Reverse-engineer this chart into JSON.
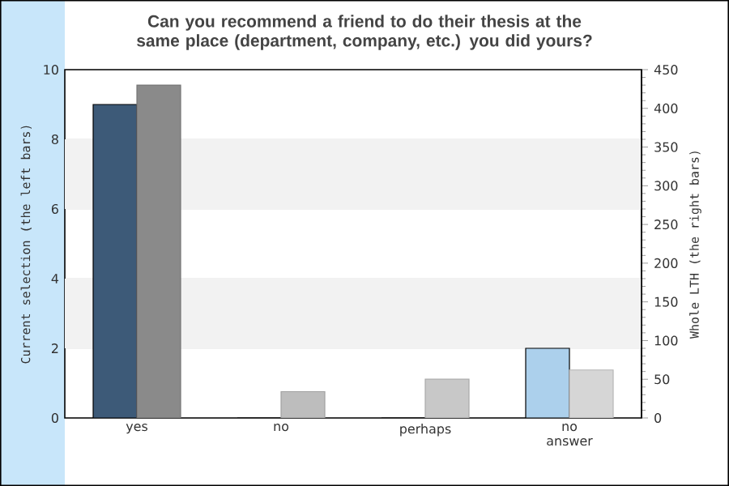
{
  "chart_data": {
    "type": "bar",
    "title": "Can you recommend a friend to do their thesis at the same place (department, company, etc.) you did yours?",
    "categories": [
      "yes",
      "no",
      "perhaps",
      "no answer"
    ],
    "ylabel": "Current selection (the left bars)",
    "y2label": "Whole LTH (the right bars)",
    "ylim": [
      0,
      10
    ],
    "yticks": [
      0,
      2,
      4,
      6,
      8,
      10
    ],
    "y2lim": [
      0,
      450
    ],
    "y2ticks": [
      0,
      50,
      100,
      150,
      200,
      250,
      300,
      350,
      400,
      450
    ],
    "grid": "y",
    "series": [
      {
        "colors": [
          "#3d5a78",
          "#3d5a78",
          "#3d5a78",
          "#acd0ec"
        ],
        "values": [
          9,
          0,
          0,
          2
        ]
      },
      {
        "axis": "y2",
        "colors": [
          "#8a8a8a",
          "#bdbdbd",
          "#c8c8c8",
          "#d6d6d6"
        ],
        "values": [
          430,
          34,
          50,
          62
        ]
      }
    ]
  }
}
